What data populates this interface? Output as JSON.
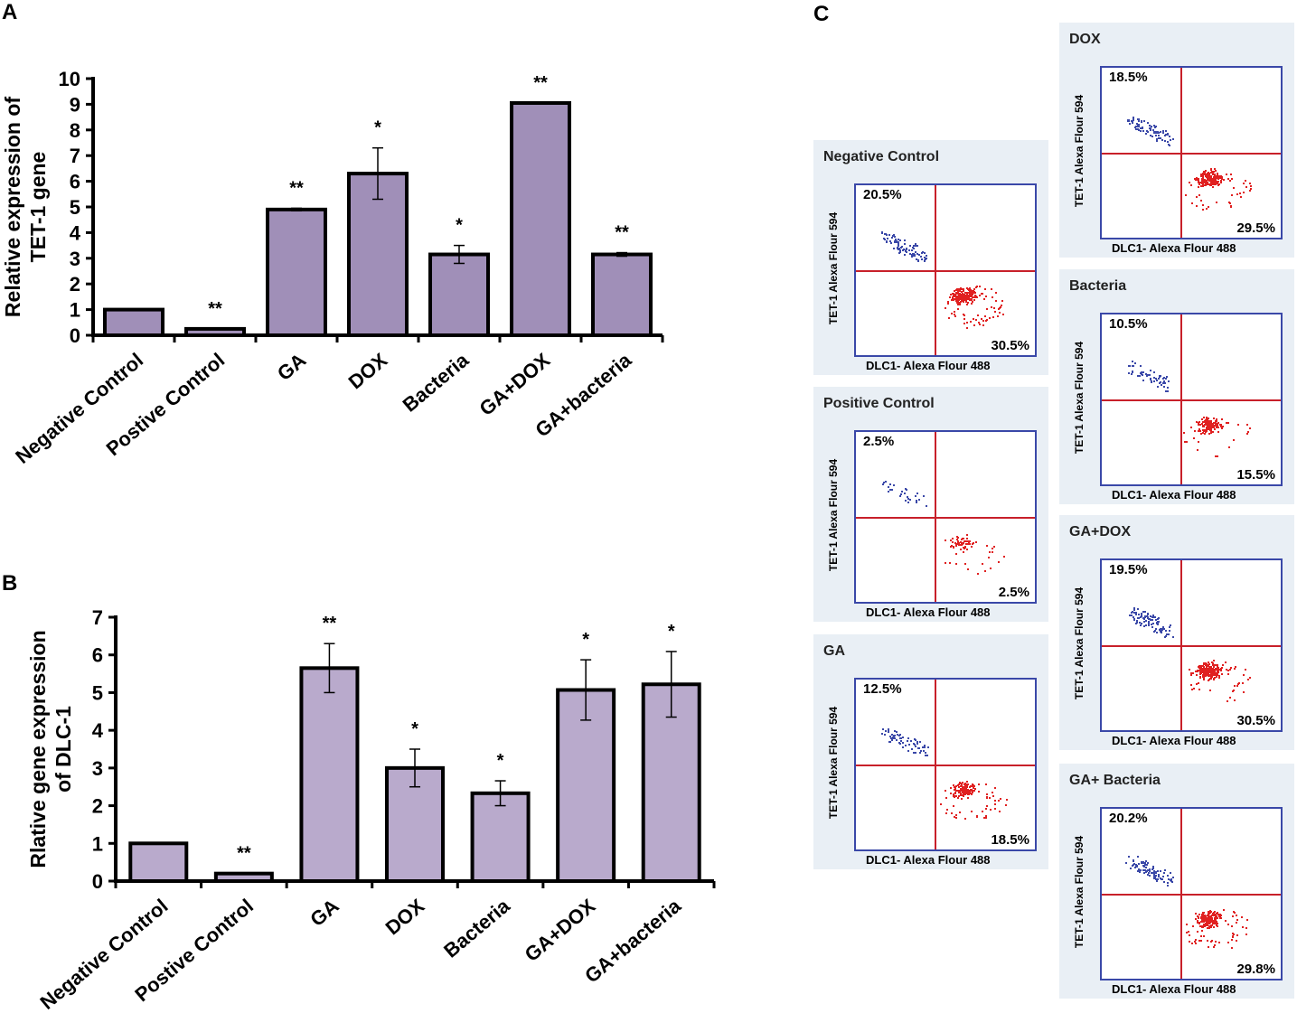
{
  "panel_labels": {
    "a": "A",
    "b": "B",
    "c": "C"
  },
  "colors": {
    "bar_a": "#a08fb8",
    "bar_b": "#b9aacc",
    "quadrant": "#c8202a",
    "ul_dots": "#3a48a8",
    "lr_dots": "#e02020"
  },
  "chart_data": [
    {
      "type": "bar",
      "title": "",
      "ylabel": "Relative expression of TET-1 gene",
      "ylabel_lines": [
        "Relative expression of",
        "TET-1 gene"
      ],
      "ylim": [
        0,
        10
      ],
      "yticks": [
        0,
        1,
        2,
        3,
        4,
        5,
        6,
        7,
        8,
        9,
        10
      ],
      "categories": [
        "Negative Control",
        "Postive Control",
        "GA",
        "DOX",
        "Bacteria",
        "GA+DOX",
        "GA+bacteria"
      ],
      "values": [
        1,
        0.25,
        4.9,
        6.3,
        3.15,
        9.05,
        3.15
      ],
      "errors": [
        0,
        0,
        0.05,
        1.0,
        0.35,
        0,
        0.07
      ],
      "significance": [
        "",
        "**",
        "**",
        "*",
        "*",
        "**",
        "**"
      ]
    },
    {
      "type": "bar",
      "title": "",
      "ylabel": "Rlative gene expression of DLC-1",
      "ylabel_lines": [
        "Rlative gene expression",
        "of DLC-1"
      ],
      "ylim": [
        0,
        7
      ],
      "yticks": [
        0,
        1,
        2,
        3,
        4,
        5,
        6,
        7
      ],
      "categories": [
        "Negative Control",
        "Postive Control",
        "GA",
        "DOX",
        "Bacteria",
        "GA+DOX",
        "GA+bacteria"
      ],
      "values": [
        1,
        0.2,
        5.65,
        3.0,
        2.33,
        5.07,
        5.22
      ],
      "errors": [
        0,
        0,
        0.65,
        0.5,
        0.33,
        0.8,
        0.87
      ],
      "significance": [
        "",
        "**",
        "**",
        "*",
        "*",
        "*",
        "*"
      ]
    }
  ],
  "flow": {
    "xlabel": "DLC1- Alexa Flour 488",
    "ylabel": "TET-1 Alexa Flour 594",
    "panels": [
      {
        "title": "Negative Control",
        "upper_left": "20.5%",
        "lower_right": "30.5%"
      },
      {
        "title": "Positive Control",
        "upper_left": "2.5%",
        "lower_right": "2.5%"
      },
      {
        "title": "GA",
        "upper_left": "12.5%",
        "lower_right": "18.5%"
      },
      {
        "title": "DOX",
        "upper_left": "18.5%",
        "lower_right": "29.5%"
      },
      {
        "title": "Bacteria",
        "upper_left": "10.5%",
        "lower_right": "15.5%"
      },
      {
        "title": "GA+DOX",
        "upper_left": "19.5%",
        "lower_right": "30.5%"
      },
      {
        "title": "GA+ Bacteria",
        "upper_left": "20.2%",
        "lower_right": "29.8%"
      }
    ]
  }
}
